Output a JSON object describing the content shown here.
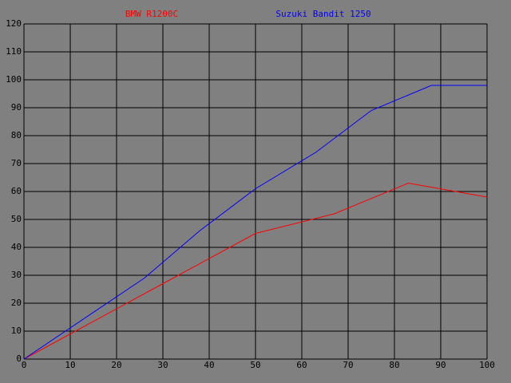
{
  "chart_data": {
    "type": "line",
    "series": [
      {
        "name": "BMW R1200C",
        "color": "#ff0000",
        "x": [
          0,
          30,
          50,
          67,
          83,
          100
        ],
        "values": [
          0,
          27,
          45,
          52,
          63,
          58
        ]
      },
      {
        "name": "Suzuki Bandit 1250",
        "color": "#0000ff",
        "x": [
          0,
          26,
          38,
          50,
          63,
          75,
          88,
          100
        ],
        "values": [
          0,
          29,
          46,
          61,
          74,
          89,
          98,
          98
        ]
      }
    ],
    "xlim": [
      0,
      100
    ],
    "xticks": [
      0,
      10,
      20,
      30,
      40,
      50,
      60,
      70,
      80,
      90,
      100
    ],
    "ylim": [
      0,
      120
    ],
    "yticks": [
      0,
      10,
      20,
      30,
      40,
      50,
      60,
      70,
      80,
      90,
      100,
      110,
      120
    ],
    "grid": true,
    "background": "#808080",
    "grid_color": "#000000"
  }
}
